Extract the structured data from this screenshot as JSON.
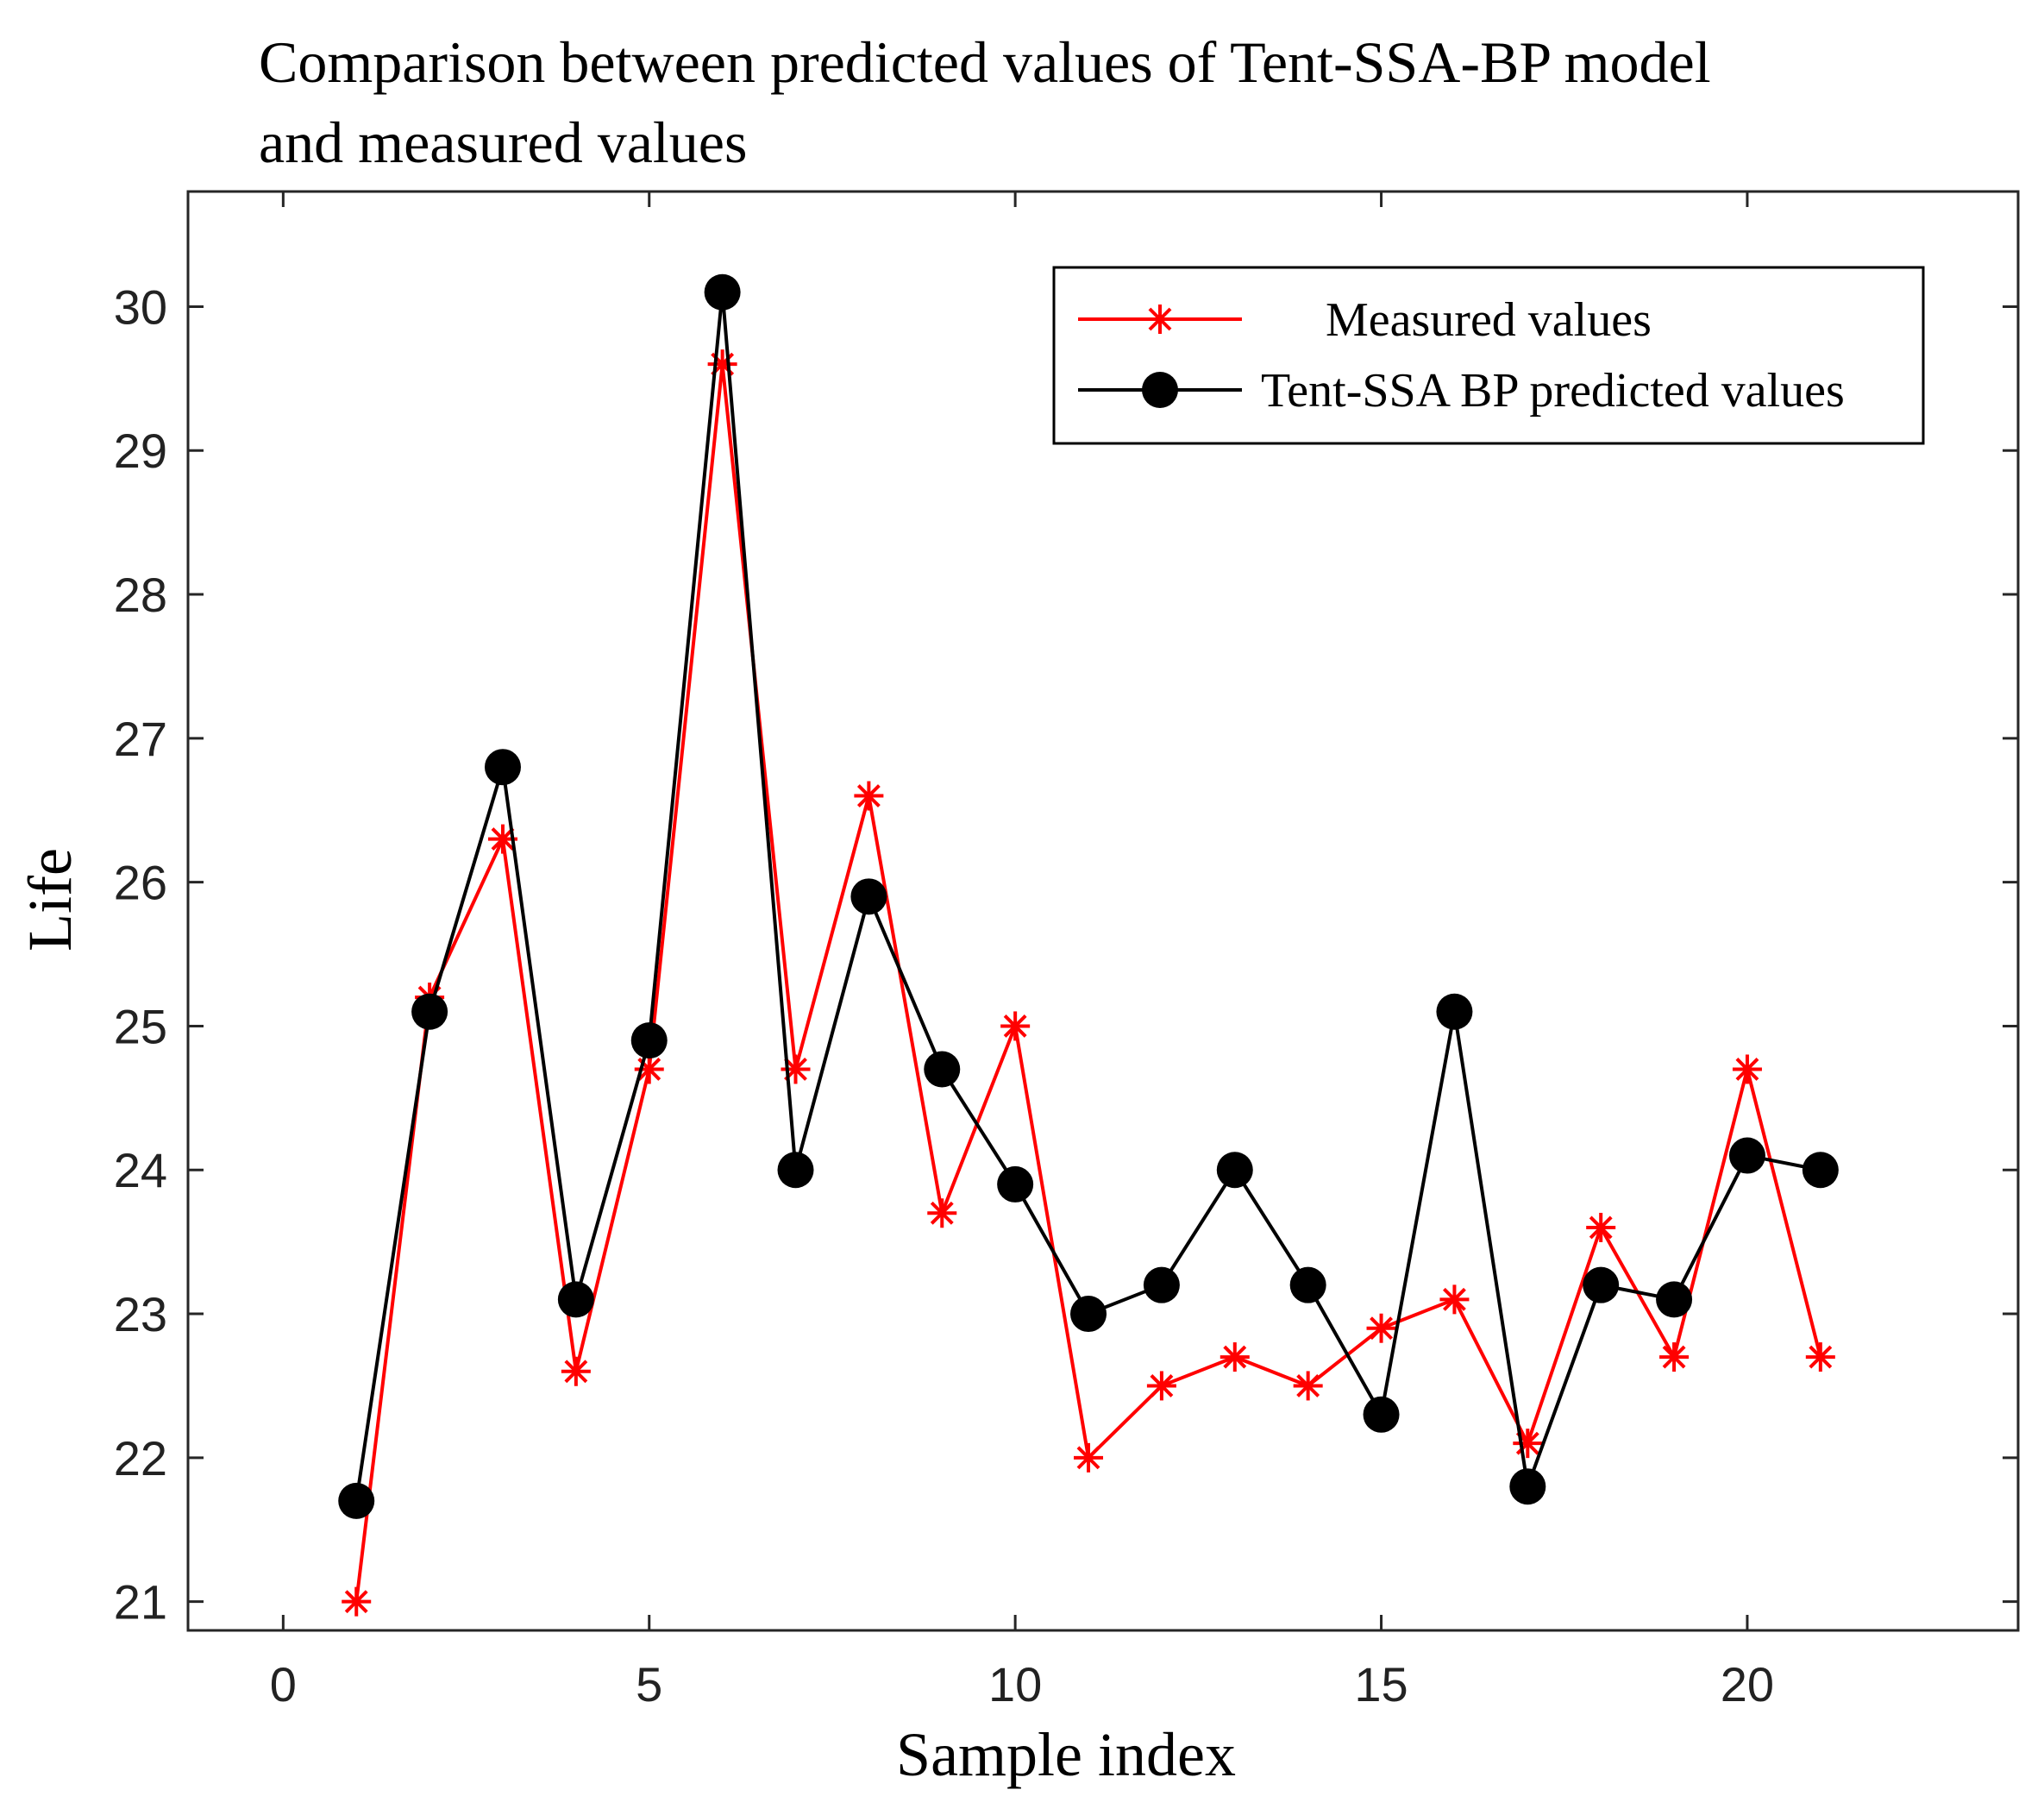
{
  "chart_data": {
    "type": "line",
    "title_lines": [
      "Comparison between predicted values of Tent-SSA-BP model",
      "and measured values"
    ],
    "xlabel": "Sample index",
    "ylabel": "Life",
    "xlim": [
      -1.3,
      23.7
    ],
    "ylim": [
      20.8,
      30.8
    ],
    "xticks": [
      0,
      5,
      10,
      15,
      20
    ],
    "yticks": [
      21,
      22,
      23,
      24,
      25,
      26,
      27,
      28,
      29,
      30
    ],
    "grid": false,
    "legend_position": "top-right",
    "x": [
      1,
      2,
      3,
      4,
      5,
      6,
      7,
      8,
      9,
      10,
      11,
      12,
      13,
      14,
      15,
      16,
      17,
      18,
      19,
      20,
      21
    ],
    "series": [
      {
        "name": "Measured values",
        "color": "#ff0000",
        "marker": "asterisk",
        "values": [
          21.0,
          25.2,
          26.3,
          22.6,
          24.7,
          29.6,
          24.7,
          26.6,
          23.7,
          25.0,
          22.0,
          22.5,
          22.7,
          22.5,
          22.9,
          23.1,
          22.1,
          23.6,
          22.7,
          24.7,
          22.7
        ]
      },
      {
        "name": "Tent-SSA BP predicted values",
        "color": "#000000",
        "marker": "circle",
        "values": [
          21.7,
          25.1,
          26.8,
          23.1,
          24.9,
          30.1,
          24.0,
          25.9,
          24.7,
          23.9,
          23.0,
          23.2,
          24.0,
          23.2,
          22.3,
          25.1,
          21.8,
          23.2,
          23.1,
          24.1,
          24.0
        ]
      }
    ]
  }
}
